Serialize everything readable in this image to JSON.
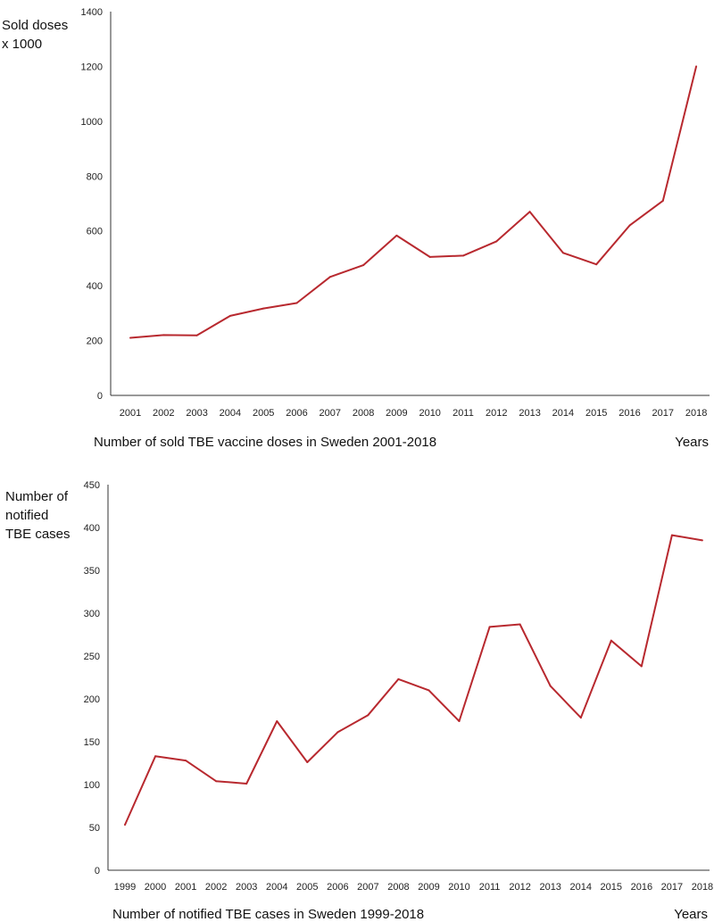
{
  "chart_data": [
    {
      "type": "line",
      "title": "Number of sold TBE vaccine doses in Sweden 2001-2018",
      "ylabel_lines": [
        "Sold doses",
        "x 1000"
      ],
      "xlabel": "Years",
      "ylim": [
        0,
        1400
      ],
      "yticks": [
        0,
        200,
        400,
        600,
        800,
        1000,
        1200,
        1400
      ],
      "categories": [
        "2001",
        "2002",
        "2003",
        "2004",
        "2005",
        "2006",
        "2007",
        "2008",
        "2009",
        "2010",
        "2011",
        "2012",
        "2013",
        "2014",
        "2015",
        "2016",
        "2017",
        "2018"
      ],
      "series": [
        {
          "name": "Sold doses x 1000",
          "values": [
            210,
            220,
            219,
            290,
            317,
            337,
            432,
            475,
            583,
            505,
            510,
            562,
            670,
            520,
            478,
            620,
            710,
            1200
          ]
        }
      ],
      "color": "#b8292f"
    },
    {
      "type": "line",
      "title": "Number of notified TBE cases in Sweden 1999-2018",
      "ylabel_lines": [
        "Number of",
        "notified",
        "TBE cases"
      ],
      "xlabel": "Years",
      "ylim": [
        0,
        450
      ],
      "yticks": [
        0,
        50,
        100,
        150,
        200,
        250,
        300,
        350,
        400,
        450
      ],
      "categories": [
        "1999",
        "2000",
        "2001",
        "2002",
        "2003",
        "2004",
        "2005",
        "2006",
        "2007",
        "2008",
        "2009",
        "2010",
        "2011",
        "2012",
        "2013",
        "2014",
        "2015",
        "2016",
        "2017",
        "2018"
      ],
      "series": [
        {
          "name": "Notified TBE cases",
          "values": [
            53,
            133,
            128,
            104,
            101,
            174,
            126,
            161,
            181,
            223,
            210,
            174,
            284,
            287,
            215,
            178,
            268,
            238,
            391,
            385
          ]
        }
      ],
      "color": "#b8292f"
    }
  ]
}
